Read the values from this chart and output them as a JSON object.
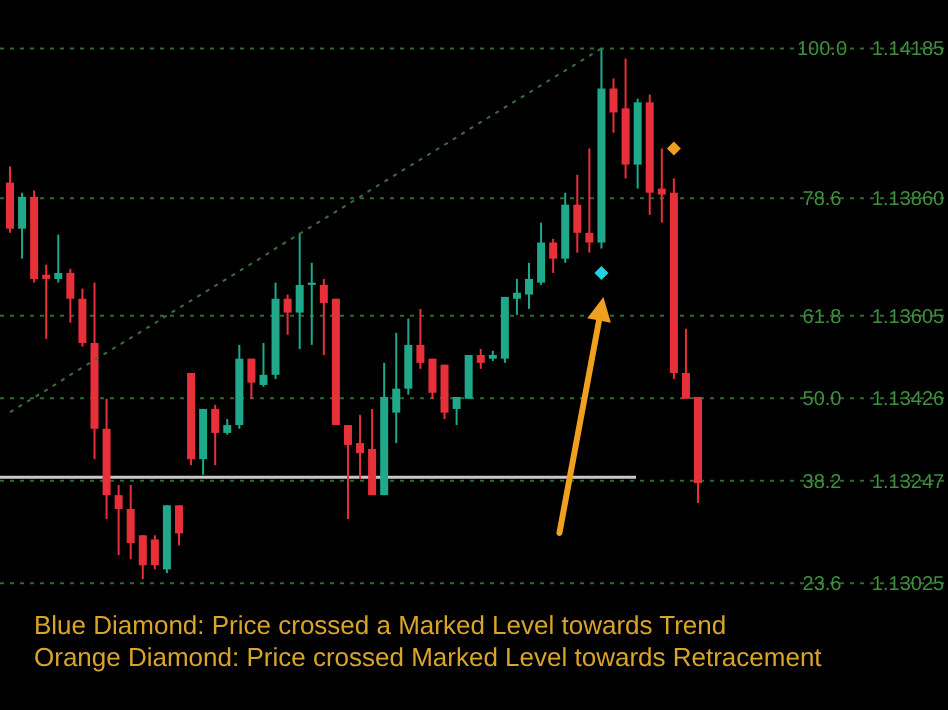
{
  "chart_data": {
    "type": "candlestick",
    "categories": [
      null,
      null,
      null,
      null,
      null,
      null,
      null,
      null,
      null,
      null,
      null,
      null,
      null,
      null,
      null,
      null,
      null,
      null,
      null,
      null,
      null,
      null,
      null,
      null,
      null,
      null,
      null,
      null,
      null,
      null,
      null,
      null,
      null,
      null,
      null,
      null,
      null,
      null,
      null,
      null,
      null,
      null,
      null,
      null,
      null,
      null,
      null,
      null,
      null,
      null,
      null,
      null,
      null,
      null,
      null,
      null,
      null,
      null
    ],
    "ohlc": [
      [
        1.13894,
        1.13929,
        1.13785,
        1.13794
      ],
      [
        1.13794,
        1.13872,
        1.13729,
        1.13863
      ],
      [
        1.13863,
        1.13877,
        1.13677,
        1.13685
      ],
      [
        1.13694,
        1.13716,
        1.13555,
        1.13685
      ],
      [
        1.13685,
        1.13781,
        1.13677,
        1.13698
      ],
      [
        1.13698,
        1.13707,
        1.1359,
        1.13642
      ],
      [
        1.13642,
        1.13664,
        1.13538,
        1.13546
      ],
      [
        1.13546,
        1.13677,
        1.13294,
        1.1336
      ],
      [
        1.1336,
        1.13425,
        1.13164,
        1.13216
      ],
      [
        1.13216,
        1.13238,
        1.13086,
        1.13186
      ],
      [
        1.13186,
        1.13238,
        1.13077,
        1.13112
      ],
      [
        1.13129,
        1.13129,
        1.13034,
        1.13064
      ],
      [
        1.1312,
        1.13129,
        1.13055,
        1.13064
      ],
      [
        1.13055,
        1.13194,
        1.13047,
        1.13194
      ],
      [
        1.13194,
        1.13194,
        1.13107,
        1.13133
      ],
      [
        1.13481,
        1.13481,
        1.13281,
        1.13294
      ],
      [
        1.13294,
        1.13403,
        1.1326,
        1.13403
      ],
      [
        1.13403,
        1.13412,
        1.13281,
        1.13351
      ],
      [
        1.13351,
        1.13381,
        1.13347,
        1.13368
      ],
      [
        1.13368,
        1.13542,
        1.1336,
        1.13512
      ],
      [
        1.13512,
        1.13512,
        1.13425,
        1.1346
      ],
      [
        1.13455,
        1.13546,
        1.13451,
        1.13477
      ],
      [
        1.13477,
        1.13677,
        1.13468,
        1.13642
      ],
      [
        1.13642,
        1.13651,
        1.13564,
        1.13612
      ],
      [
        1.13612,
        1.13785,
        1.13533,
        1.13672
      ],
      [
        1.13672,
        1.1372,
        1.13542,
        1.13677
      ],
      [
        1.13672,
        1.13685,
        1.1352,
        1.13633
      ],
      [
        1.13642,
        1.13642,
        1.13368,
        1.13368
      ],
      [
        1.13368,
        1.13368,
        1.13164,
        1.13325
      ],
      [
        1.13329,
        1.1339,
        1.13251,
        1.13307
      ],
      [
        1.13316,
        1.13403,
        1.13216,
        1.13216
      ],
      [
        1.13216,
        1.13503,
        1.13216,
        1.13429
      ],
      [
        1.13395,
        1.13568,
        1.13329,
        1.13447
      ],
      [
        1.13447,
        1.13599,
        1.13434,
        1.13542
      ],
      [
        1.13542,
        1.1362,
        1.1349,
        1.13503
      ],
      [
        1.13512,
        1.13512,
        1.13425,
        1.13438
      ],
      [
        1.13499,
        1.13499,
        1.13381,
        1.13395
      ],
      [
        1.13403,
        1.13429,
        1.13368,
        1.13429
      ],
      [
        1.13425,
        1.1352,
        1.13425,
        1.1352
      ],
      [
        1.1352,
        1.13533,
        1.1349,
        1.13503
      ],
      [
        1.13512,
        1.13529,
        1.13507,
        1.1352
      ],
      [
        1.13512,
        1.13646,
        1.13503,
        1.13646
      ],
      [
        1.13642,
        1.13685,
        1.13607,
        1.13655
      ],
      [
        1.13651,
        1.1372,
        1.1362,
        1.13685
      ],
      [
        1.13677,
        1.13807,
        1.13672,
        1.13764
      ],
      [
        1.13764,
        1.13772,
        1.13698,
        1.13729
      ],
      [
        1.13729,
        1.13872,
        1.1372,
        1.13846
      ],
      [
        1.13846,
        1.13911,
        1.13742,
        1.13785
      ],
      [
        1.13785,
        1.13968,
        1.13742,
        1.13764
      ],
      [
        1.13764,
        1.14185,
        1.13751,
        1.14098
      ],
      [
        1.14098,
        1.1412,
        1.14002,
        1.14046
      ],
      [
        1.14055,
        1.14163,
        1.13903,
        1.13933
      ],
      [
        1.13933,
        1.14076,
        1.13881,
        1.14068
      ],
      [
        1.14068,
        1.14085,
        1.13824,
        1.13872
      ],
      [
        1.13881,
        1.13968,
        1.13807,
        1.13868
      ],
      [
        1.13872,
        1.13903,
        1.13468,
        1.13481
      ],
      [
        1.13481,
        1.13577,
        1.13425,
        1.13425
      ],
      [
        1.13429,
        1.13429,
        1.13199,
        1.13242
      ]
    ],
    "colors": [
      "#e8303a",
      "#1fa88a",
      "#e8303a",
      "#e8303a",
      "#1fa88a",
      "#e8303a",
      "#e8303a",
      "#e8303a",
      "#e8303a",
      "#e8303a",
      "#e8303a",
      "#e8303a",
      "#e8303a",
      "#1fa88a",
      "#e8303a",
      "#e8303a",
      "#1fa88a",
      "#e8303a",
      "#1fa88a",
      "#1fa88a",
      "#e8303a",
      "#1fa88a",
      "#1fa88a",
      "#e8303a",
      "#1fa88a",
      "#1fa88a",
      "#e8303a",
      "#e8303a",
      "#e8303a",
      "#e8303a",
      "#e8303a",
      "#1fa88a",
      "#1fa88a",
      "#1fa88a",
      "#e8303a",
      "#e8303a",
      "#e8303a",
      "#1fa88a",
      "#1fa88a",
      "#e8303a",
      "#1fa88a",
      "#1fa88a",
      "#1fa88a",
      "#1fa88a",
      "#1fa88a",
      "#e8303a",
      "#1fa88a",
      "#e8303a",
      "#e8303a",
      "#1fa88a",
      "#e8303a",
      "#e8303a",
      "#1fa88a",
      "#e8303a",
      "#e8303a",
      "#e8303a",
      "#e8303a",
      "#e8303a"
    ],
    "series": [
      {
        "type": "line",
        "values": [
          1.13396,
          1.13412,
          1.13428,
          1.13444,
          1.1346,
          1.13477,
          1.13493,
          1.13509,
          1.13525,
          1.13541,
          1.13557,
          1.13573,
          1.13589,
          1.13606,
          1.13622,
          1.13638,
          1.13654,
          1.1367,
          1.13686,
          1.13702,
          1.13718,
          1.13734,
          1.13751,
          1.13767,
          1.13783,
          1.13799,
          1.13815,
          1.13831,
          1.13847,
          1.13863,
          1.1388,
          1.13896,
          1.13912,
          1.13928,
          1.13944,
          1.1396,
          1.13976,
          1.13992,
          1.14009,
          1.14025,
          1.14041,
          1.14057,
          1.14073,
          1.14089,
          1.14105,
          1.14121,
          1.14137,
          1.14153,
          1.14169,
          1.14185,
          null,
          null,
          null,
          null,
          null,
          null,
          null,
          null
        ],
        "color": "#3c6e3c",
        "line_style": "dotted"
      },
      {
        "type": "scatter",
        "values": [
          null,
          null,
          null,
          null,
          null,
          null,
          null,
          null,
          null,
          null,
          null,
          null,
          null,
          null,
          null,
          null,
          null,
          null,
          null,
          null,
          null,
          null,
          null,
          null,
          null,
          null,
          null,
          null,
          null,
          null,
          null,
          null,
          null,
          null,
          null,
          null,
          null,
          null,
          null,
          null,
          null,
          null,
          null,
          null,
          null,
          null,
          null,
          null,
          null,
          1.13698,
          null,
          null,
          null,
          null,
          null,
          null,
          null,
          null
        ],
        "color": "#22d3e6",
        "marker": "diamond"
      },
      {
        "type": "scatter",
        "values": [
          null,
          null,
          null,
          null,
          null,
          null,
          null,
          null,
          null,
          null,
          null,
          null,
          null,
          null,
          null,
          null,
          null,
          null,
          null,
          null,
          null,
          null,
          null,
          null,
          null,
          null,
          null,
          null,
          null,
          null,
          null,
          null,
          null,
          null,
          null,
          null,
          null,
          null,
          null,
          null,
          null,
          null,
          null,
          null,
          null,
          null,
          null,
          null,
          null,
          null,
          null,
          null,
          null,
          null,
          null,
          1.13968,
          null,
          null
        ],
        "color": "#f0a020",
        "marker": "diamond"
      }
    ],
    "ylim": [
      1.1275,
      1.1429
    ],
    "yticks": [
      {
        "value": 1.14185,
        "label": "1.14185"
      },
      {
        "value": 1.1386,
        "label": "1.13860"
      },
      {
        "value": 1.13605,
        "label": "1.13605"
      },
      {
        "value": 1.13426,
        "label": "1.13426"
      },
      {
        "value": 1.13247,
        "label": "1.13247"
      },
      {
        "value": 1.13025,
        "label": "1.13025"
      }
    ],
    "tick_labels": "y",
    "ref_lines": [
      {
        "axis": "y",
        "value": 1.14185,
        "color": "#2f6a2f",
        "line_style": "dotted"
      },
      {
        "axis": "y",
        "value": 1.1386,
        "color": "#2f6a2f",
        "line_style": "dotted"
      },
      {
        "axis": "y",
        "value": 1.13605,
        "color": "#2f6a2f",
        "line_style": "dotted"
      },
      {
        "axis": "y",
        "value": 1.13426,
        "color": "#2f6a2f",
        "line_style": "dotted"
      },
      {
        "axis": "y",
        "value": 1.13247,
        "color": "#2f6a2f",
        "line_style": "dotted"
      },
      {
        "axis": "y",
        "value": 1.13025,
        "color": "#2f6a2f",
        "line_style": "dotted"
      },
      {
        "axis": "y",
        "value": 1.13255,
        "color": "#c8c8c8",
        "line_style": "solid"
      }
    ],
    "annotations": [
      {
        "text": "100.0",
        "y": 1.14185
      },
      {
        "text": "78.6",
        "y": 1.1386
      },
      {
        "text": "61.8",
        "y": 1.13605
      },
      {
        "text": "50.0",
        "y": 1.13426
      },
      {
        "text": "38.2",
        "y": 1.13247
      },
      {
        "text": "23.6",
        "y": 1.13025
      },
      "Blue Diamond: Price crossed a Marked Level towards Trend",
      "Orange Diamond: Price crossed Marked Level towards Retracement"
    ]
  }
}
